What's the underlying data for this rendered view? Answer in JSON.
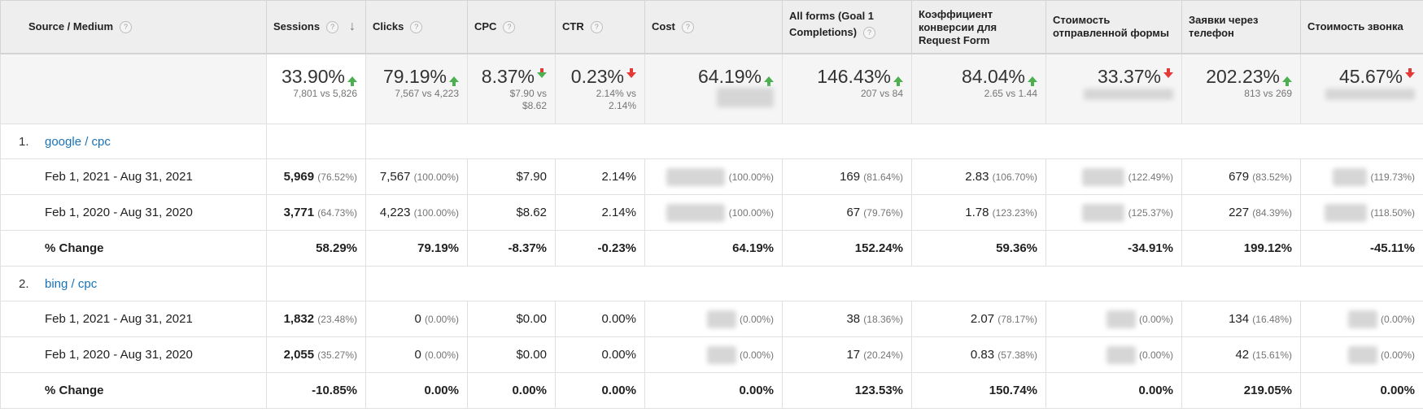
{
  "headers": [
    {
      "label": "Source / Medium"
    },
    {
      "label": "Sessions"
    },
    {
      "label": "Clicks"
    },
    {
      "label": "CPC"
    },
    {
      "label": "CTR"
    },
    {
      "label": "Cost"
    },
    {
      "label": "All forms (Goal 1 Completions)"
    },
    {
      "label": "Коэффициент конверсии для Request Form"
    },
    {
      "label": "Стоимость отправленной формы"
    },
    {
      "label": "Заявки через телефон"
    },
    {
      "label": "Стоимость звонка"
    }
  ],
  "help_glyph": "?",
  "sort_glyph": "↓",
  "summary": [
    {
      "pct": "33.90%",
      "dir": "up",
      "cmp": "7,801 vs 5,826"
    },
    {
      "pct": "79.19%",
      "dir": "up",
      "cmp": "7,567 vs 4,223"
    },
    {
      "pct": "8.37%",
      "dir": "down-good",
      "cmp": "$7.90 vs $8.62"
    },
    {
      "pct": "0.23%",
      "dir": "down",
      "cmp": "2.14% vs 2.14%"
    },
    {
      "pct": "64.19%",
      "dir": "up",
      "cmp": ""
    },
    {
      "pct": "146.43%",
      "dir": "up",
      "cmp": "207 vs 84"
    },
    {
      "pct": "84.04%",
      "dir": "up",
      "cmp": "2.65 vs 1.44"
    },
    {
      "pct": "33.37%",
      "dir": "down",
      "cmp": ""
    },
    {
      "pct": "202.23%",
      "dir": "up",
      "cmp": "813 vs 269"
    },
    {
      "pct": "45.67%",
      "dir": "down",
      "cmp": ""
    }
  ],
  "groups": [
    {
      "index": "1.",
      "name": "google / cpc",
      "rows": [
        {
          "label": "Feb 1, 2021 - Aug 31, 2021",
          "sessions": "5,969",
          "sessions_pct": "(76.52%)",
          "clicks": "7,567",
          "clicks_pct": "(100.00%)",
          "cpc": "$7.90",
          "ctr": "2.14%",
          "cost_pct": "(100.00%)",
          "forms": "169",
          "forms_pct": "(81.64%)",
          "conv": "2.83",
          "conv_pct": "(106.70%)",
          "cpf_pct": "(122.49%)",
          "phone": "679",
          "phone_pct": "(83.52%)",
          "cpcall_pct": "(119.73%)"
        },
        {
          "label": "Feb 1, 2020 - Aug 31, 2020",
          "sessions": "3,771",
          "sessions_pct": "(64.73%)",
          "clicks": "4,223",
          "clicks_pct": "(100.00%)",
          "cpc": "$8.62",
          "ctr": "2.14%",
          "cost_pct": "(100.00%)",
          "forms": "67",
          "forms_pct": "(79.76%)",
          "conv": "1.78",
          "conv_pct": "(123.23%)",
          "cpf_pct": "(125.37%)",
          "phone": "227",
          "phone_pct": "(84.39%)",
          "cpcall_pct": "(118.50%)"
        }
      ],
      "change": {
        "label": "% Change",
        "sessions": "58.29%",
        "clicks": "79.19%",
        "cpc": "-8.37%",
        "ctr": "-0.23%",
        "cost": "64.19%",
        "forms": "152.24%",
        "conv": "59.36%",
        "cpf": "-34.91%",
        "phone": "199.12%",
        "cpcall": "-45.11%"
      }
    },
    {
      "index": "2.",
      "name": "bing / cpc",
      "rows": [
        {
          "label": "Feb 1, 2021 - Aug 31, 2021",
          "sessions": "1,832",
          "sessions_pct": "(23.48%)",
          "clicks": "0",
          "clicks_pct": "(0.00%)",
          "cpc": "$0.00",
          "ctr": "0.00%",
          "cost_pct": "(0.00%)",
          "forms": "38",
          "forms_pct": "(18.36%)",
          "conv": "2.07",
          "conv_pct": "(78.17%)",
          "cpf_pct": "(0.00%)",
          "phone": "134",
          "phone_pct": "(16.48%)",
          "cpcall_pct": "(0.00%)"
        },
        {
          "label": "Feb 1, 2020 - Aug 31, 2020",
          "sessions": "2,055",
          "sessions_pct": "(35.27%)",
          "clicks": "0",
          "clicks_pct": "(0.00%)",
          "cpc": "$0.00",
          "ctr": "0.00%",
          "cost_pct": "(0.00%)",
          "forms": "17",
          "forms_pct": "(20.24%)",
          "conv": "0.83",
          "conv_pct": "(57.38%)",
          "cpf_pct": "(0.00%)",
          "phone": "42",
          "phone_pct": "(15.61%)",
          "cpcall_pct": "(0.00%)"
        }
      ],
      "change": {
        "label": "% Change",
        "sessions": "-10.85%",
        "clicks": "0.00%",
        "cpc": "0.00%",
        "ctr": "0.00%",
        "cost": "0.00%",
        "forms": "123.53%",
        "conv": "150.74%",
        "cpf": "0.00%",
        "phone": "219.05%",
        "cpcall": "0.00%"
      }
    }
  ],
  "colors": {
    "up": "#4caf50",
    "down": "#e53935",
    "link": "#1a73b8",
    "header_bg": "#eeeeee"
  }
}
